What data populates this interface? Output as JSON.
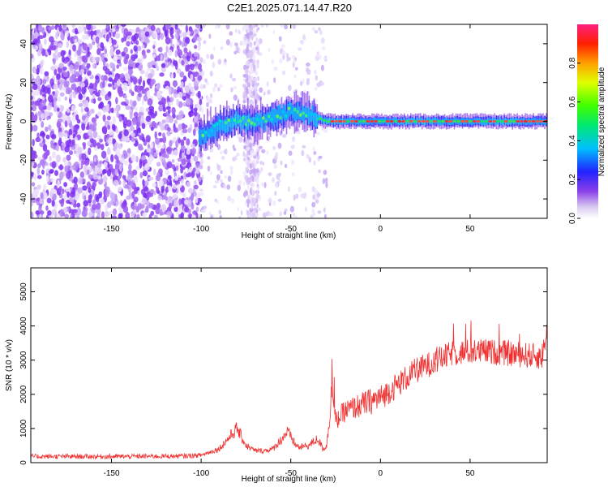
{
  "title": "C2E1.2025.071.14.47.R20",
  "chart_data": [
    {
      "type": "heatmap",
      "xlabel": "Height of straight line (km)",
      "ylabel": "Frequency (Hz)",
      "xlim": [
        -195,
        93
      ],
      "ylim": [
        -50,
        50
      ],
      "xticks": [
        "-150",
        "-100",
        "-50",
        "0",
        "50"
      ],
      "xtick_values": [
        -150,
        -100,
        -50,
        0,
        50
      ],
      "yticks": [
        "-40",
        "-20",
        "0",
        "20",
        "40"
      ],
      "ytick_values": [
        -40,
        -20,
        0,
        20,
        40
      ],
      "colorbar": {
        "label": "Normalized spectral amplitude",
        "range": [
          0,
          1
        ],
        "ticks": [
          "0.0",
          "0.2",
          "0.4",
          "0.6",
          "0.8"
        ],
        "tick_values": [
          0.0,
          0.2,
          0.4,
          0.6,
          0.8
        ]
      },
      "ridge": {
        "x": [
          -100,
          -90,
          -80,
          -70,
          -60,
          -50,
          -40,
          -35,
          -30,
          -20,
          0,
          20,
          40,
          60,
          93
        ],
        "y": [
          -8,
          -2,
          1,
          -1,
          2,
          5,
          4,
          2,
          0,
          0,
          0,
          0,
          0,
          0,
          0
        ]
      }
    },
    {
      "type": "line",
      "xlabel": "Height of straight line (km)",
      "ylabel": "SNR (10 * v/v)",
      "xlim": [
        -195,
        93
      ],
      "ylim": [
        0,
        5700
      ],
      "xticks": [
        "-150",
        "-100",
        "-50",
        "0",
        "50"
      ],
      "xtick_values": [
        -150,
        -100,
        -50,
        0,
        50
      ],
      "yticks": [
        "0",
        "1000",
        "2000",
        "3000",
        "4000",
        "5000"
      ],
      "ytick_values": [
        0,
        1000,
        2000,
        3000,
        4000,
        5000
      ],
      "color": "#f03030",
      "series": [
        {
          "x": [
            -195,
            -150,
            -110,
            -100,
            -90,
            -85,
            -80,
            -78,
            -75,
            -70,
            -65,
            -60,
            -55,
            -52,
            -50,
            -47,
            -45,
            -40,
            -35,
            -32,
            -30,
            -28,
            -27,
            -26,
            -25,
            -20,
            -10,
            0,
            10,
            20,
            30,
            40,
            50,
            60,
            70,
            80,
            90,
            93
          ],
          "y": [
            180,
            180,
            190,
            220,
            400,
            700,
            1000,
            800,
            500,
            350,
            350,
            400,
            700,
            900,
            750,
            500,
            450,
            500,
            700,
            400,
            500,
            1500,
            2500,
            1600,
            1200,
            1500,
            1700,
            1900,
            2300,
            2700,
            2950,
            3200,
            3250,
            3250,
            3200,
            3150,
            3100,
            3800
          ]
        }
      ]
    }
  ]
}
